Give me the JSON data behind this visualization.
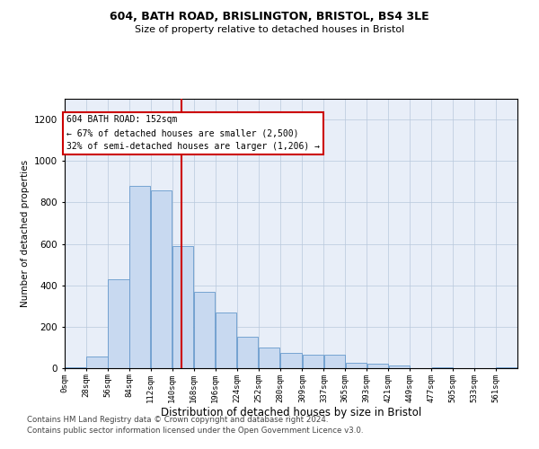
{
  "title_line1": "604, BATH ROAD, BRISLINGTON, BRISTOL, BS4 3LE",
  "title_line2": "Size of property relative to detached houses in Bristol",
  "xlabel": "Distribution of detached houses by size in Bristol",
  "ylabel": "Number of detached properties",
  "annotation_line1": "604 BATH ROAD: 152sqm",
  "annotation_line2": "← 67% of detached houses are smaller (2,500)",
  "annotation_line3": "32% of semi-detached houses are larger (1,206) →",
  "footer_line1": "Contains HM Land Registry data © Crown copyright and database right 2024.",
  "footer_line2": "Contains public sector information licensed under the Open Government Licence v3.0.",
  "bar_color": "#c8d9f0",
  "bar_edge_color": "#6699cc",
  "vline_color": "#cc0000",
  "vline_x": 152,
  "background_color": "#ffffff",
  "plot_bg_color": "#e8eef8",
  "grid_color": "#b8c8dc",
  "categories": [
    "0sqm",
    "28sqm",
    "56sqm",
    "84sqm",
    "112sqm",
    "140sqm",
    "168sqm",
    "196sqm",
    "224sqm",
    "252sqm",
    "280sqm",
    "309sqm",
    "337sqm",
    "365sqm",
    "393sqm",
    "421sqm",
    "449sqm",
    "477sqm",
    "505sqm",
    "533sqm",
    "561sqm"
  ],
  "bin_edges": [
    0,
    28,
    56,
    84,
    112,
    140,
    168,
    196,
    224,
    252,
    280,
    309,
    337,
    365,
    393,
    421,
    449,
    477,
    505,
    533,
    561,
    589
  ],
  "values": [
    5,
    55,
    430,
    880,
    860,
    590,
    370,
    270,
    150,
    100,
    75,
    65,
    65,
    25,
    20,
    15,
    0,
    5,
    0,
    0,
    5
  ],
  "ylim": [
    0,
    1300
  ],
  "yticks": [
    0,
    200,
    400,
    600,
    800,
    1000,
    1200
  ]
}
